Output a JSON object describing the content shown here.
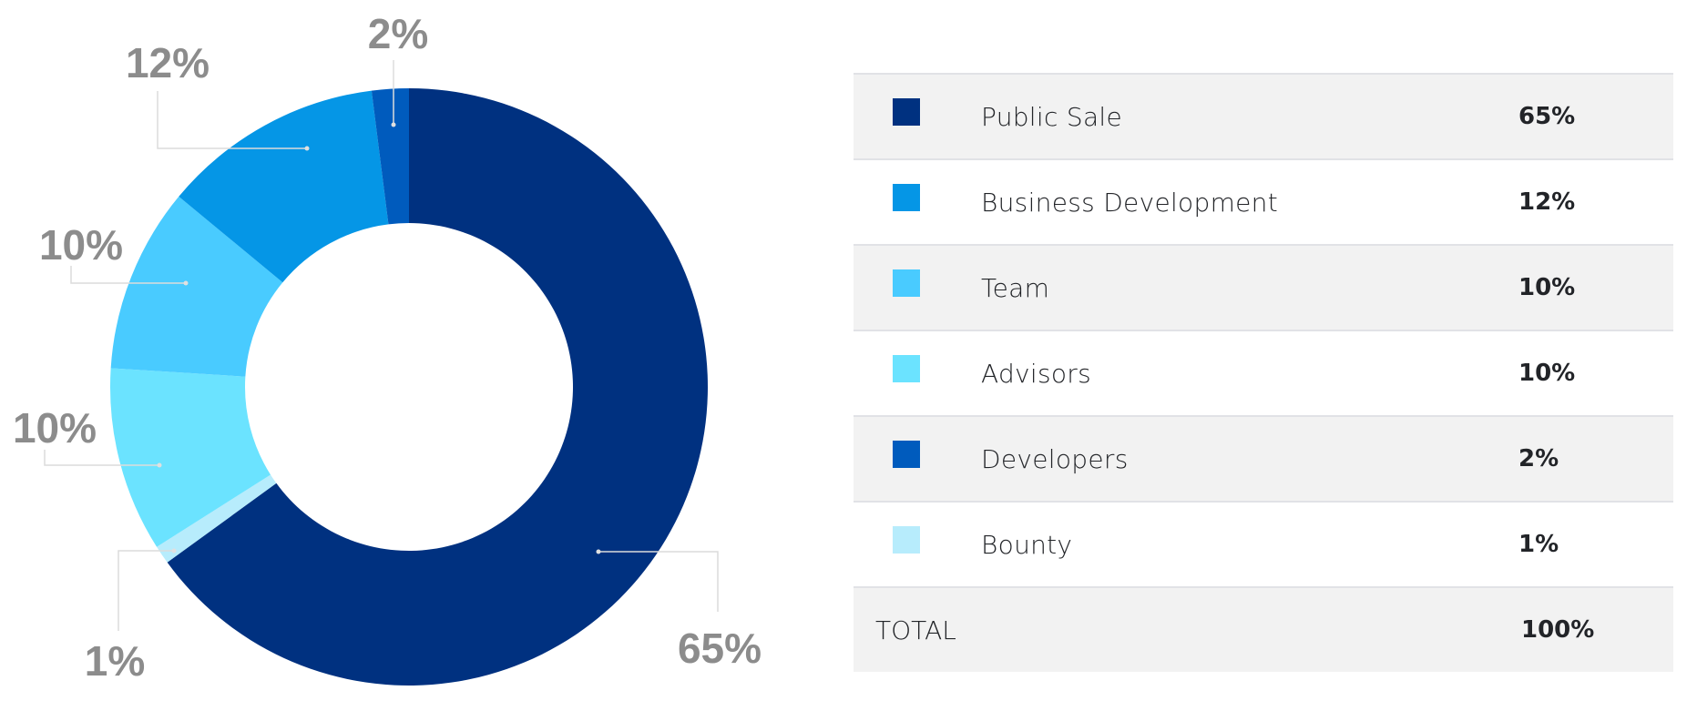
{
  "chart_data": {
    "type": "pie",
    "variant": "donut",
    "title": "",
    "categories": [
      "Public Sale",
      "Business Development",
      "Team",
      "Advisors",
      "Developers",
      "Bounty"
    ],
    "values": [
      65,
      12,
      10,
      10,
      2,
      1
    ],
    "unit": "%",
    "colors": [
      "#003180",
      "#0596e6",
      "#49cbff",
      "#6be3ff",
      "#005bbd",
      "#b7ecfc"
    ],
    "slice_order_clockwise_from_top": [
      "Public Sale",
      "Bounty",
      "Advisors",
      "Team",
      "Business Development",
      "Developers"
    ],
    "labels": [
      "65%",
      "12%",
      "10%",
      "10%",
      "2%",
      "1%"
    ],
    "legend_placement": "right"
  },
  "table": {
    "rows": [
      {
        "name": "Public Sale",
        "value": "65%",
        "color": "#003180"
      },
      {
        "name": "Business Development",
        "value": "12%",
        "color": "#0596e6"
      },
      {
        "name": "Team",
        "value": "10%",
        "color": "#49cbff"
      },
      {
        "name": "Advisors",
        "value": "10%",
        "color": "#6be3ff"
      },
      {
        "name": "Developers",
        "value": "2%",
        "color": "#005bbd"
      },
      {
        "name": "Bounty",
        "value": "1%",
        "color": "#b7ecfc"
      }
    ],
    "total": {
      "name": "TOTAL",
      "value": "100%"
    }
  }
}
